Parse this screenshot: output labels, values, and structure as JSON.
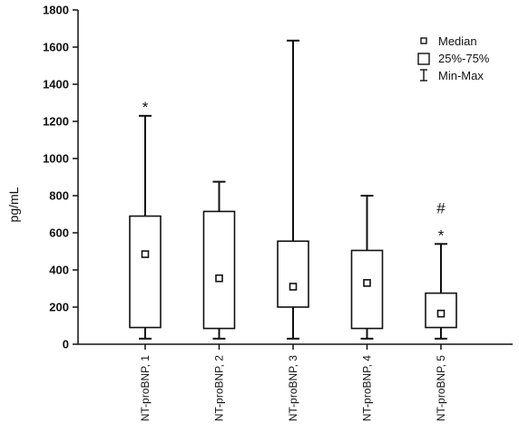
{
  "chart_data": {
    "type": "boxplot",
    "ylabel": "pg/mL",
    "xlabel": "",
    "ylim": [
      0,
      1800
    ],
    "yticks": [
      0,
      200,
      400,
      600,
      800,
      1000,
      1200,
      1400,
      1600,
      1800
    ],
    "grid": false,
    "legend_position": "top-right",
    "legend": {
      "median": "Median",
      "box": "25%-75%",
      "whisker": "Min-Max"
    },
    "categories": [
      "NT-proBNP, 1",
      "NT-proBNP, 2",
      "NT-proBNP, 3",
      "NT-proBNP, 4",
      "NT-proBNP, 5"
    ],
    "boxes": [
      {
        "category": "NT-proBNP, 1",
        "min": 30,
        "q1": 90,
        "median": 485,
        "q3": 690,
        "max": 1230,
        "annotation": "*"
      },
      {
        "category": "NT-proBNP, 2",
        "min": 30,
        "q1": 85,
        "median": 355,
        "q3": 715,
        "max": 875,
        "annotation": ""
      },
      {
        "category": "NT-proBNP, 3",
        "min": 30,
        "q1": 200,
        "median": 310,
        "q3": 555,
        "max": 1635,
        "annotation": ""
      },
      {
        "category": "NT-proBNP, 4",
        "min": 30,
        "q1": 85,
        "median": 330,
        "q3": 505,
        "max": 800,
        "annotation": ""
      },
      {
        "category": "NT-proBNP, 5",
        "min": 30,
        "q1": 90,
        "median": 165,
        "q3": 275,
        "max": 540,
        "annotation": "#\n*"
      }
    ]
  }
}
